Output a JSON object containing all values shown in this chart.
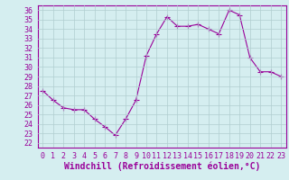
{
  "x": [
    0,
    1,
    2,
    3,
    4,
    5,
    6,
    7,
    8,
    9,
    10,
    11,
    12,
    13,
    14,
    15,
    16,
    17,
    18,
    19,
    20,
    21,
    22,
    23
  ],
  "y": [
    27.5,
    26.5,
    25.7,
    25.5,
    25.5,
    24.5,
    23.7,
    22.8,
    24.5,
    26.5,
    31.2,
    33.5,
    35.3,
    34.3,
    34.3,
    34.5,
    34.0,
    33.5,
    36.0,
    35.5,
    31.0,
    29.5,
    29.5,
    29.0
  ],
  "line_color": "#990099",
  "marker": "+",
  "marker_size": 4,
  "bg_color": "#d5eef0",
  "grid_color": "#b0cdd0",
  "xlabel": "Windchill (Refroidissement éolien,°C)",
  "ylabel_ticks": [
    22,
    23,
    24,
    25,
    26,
    27,
    28,
    29,
    30,
    31,
    32,
    33,
    34,
    35,
    36
  ],
  "xlim": [
    -0.5,
    23.5
  ],
  "ylim": [
    21.5,
    36.5
  ],
  "xlabel_fontsize": 7,
  "tick_fontsize": 6
}
